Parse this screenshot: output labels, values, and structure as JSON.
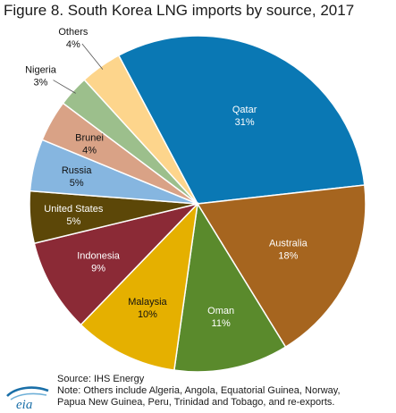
{
  "figure": {
    "title": "Figure 8. South Korea LNG imports by source, 2017"
  },
  "chart_data": {
    "type": "pie",
    "title": "Figure 8. South Korea LNG imports by source, 2017",
    "unit": "%",
    "start_angle_deg": -28,
    "direction": "clockwise",
    "slices": [
      {
        "name": "Qatar",
        "value": 31,
        "label": "31%",
        "color": "#0a78b4",
        "text": "light"
      },
      {
        "name": "Australia",
        "value": 18,
        "label": "18%",
        "color": "#a6651f",
        "text": "light"
      },
      {
        "name": "Oman",
        "value": 11,
        "label": "11%",
        "color": "#5a8a2c",
        "text": "light"
      },
      {
        "name": "Malaysia",
        "value": 10,
        "label": "10%",
        "color": "#e5b000",
        "text": "dark"
      },
      {
        "name": "Indonesia",
        "value": 9,
        "label": "9%",
        "color": "#8b2a36",
        "text": "light"
      },
      {
        "name": "United States",
        "value": 5,
        "label": "5%",
        "color": "#5c4708",
        "text": "light"
      },
      {
        "name": "Russia",
        "value": 5,
        "label": "5%",
        "color": "#86b6e0",
        "text": "dark"
      },
      {
        "name": "Brunei",
        "value": 4,
        "label": "4%",
        "color": "#d9a286",
        "text": "dark"
      },
      {
        "name": "Nigeria",
        "value": 3,
        "label": "3%",
        "color": "#9cbf8c",
        "text": "dark"
      },
      {
        "name": "Others",
        "value": 4,
        "label": "4%",
        "color": "#fdd58c",
        "text": "dark"
      }
    ]
  },
  "footer": {
    "source": "Source: IHS Energy",
    "note_line1": "Note: Others include Algeria, Angola, Equatorial Guinea, Norway,",
    "note_line2": "Papua New Guinea, Peru, Trinidad and Tobago, and re-exports."
  },
  "logo": {
    "text": "eia",
    "color": "#1a6fa8"
  }
}
